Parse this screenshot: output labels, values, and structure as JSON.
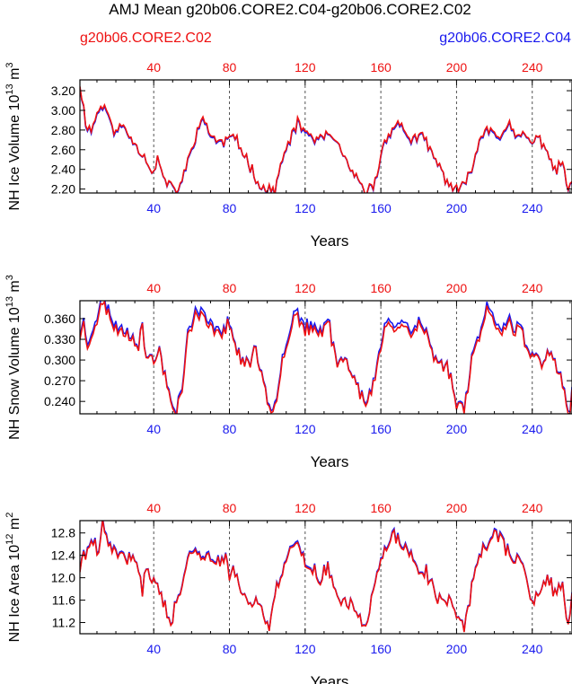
{
  "title": "AMJ Mean g20b06.CORE2.C04-g20b06.CORE2.C02",
  "legend": {
    "left_label": "g20b06.CORE2.C02",
    "right_label": "g20b06.CORE2.C04"
  },
  "colors": {
    "run_c02": "#ee1111",
    "run_c04": "#1a1aee",
    "text": "#000000",
    "grid": "#555555"
  },
  "chart_data": [
    {
      "type": "line",
      "id": "ice-volume",
      "ylabel": "NH Ice Volume 10",
      "ylabel_exp": "13",
      "ylabel_unit": "m",
      "ylabel_unit_exp": "3",
      "xlabel": "Years",
      "xlim": [
        1,
        261
      ],
      "ylim": [
        2.16,
        3.31
      ],
      "yticks": [
        "2.20",
        "2.40",
        "2.60",
        "2.80",
        "3.00",
        "3.20"
      ],
      "xticks": [
        "40",
        "80",
        "120",
        "160",
        "200",
        "240"
      ],
      "gridlines_x": [
        40,
        80,
        120,
        160,
        200,
        240
      ],
      "cycle": 52,
      "seed": 11,
      "keypoints": [
        [
          1,
          3.28
        ],
        [
          4,
          2.88
        ],
        [
          7,
          2.8
        ],
        [
          11,
          3.02
        ],
        [
          14,
          3.07
        ],
        [
          16,
          2.92
        ],
        [
          20,
          2.78
        ],
        [
          24,
          2.85
        ],
        [
          28,
          2.72
        ],
        [
          32,
          2.62
        ],
        [
          36,
          2.5
        ],
        [
          40,
          2.36
        ],
        [
          42,
          2.52
        ],
        [
          45,
          2.32
        ],
        [
          49,
          2.22
        ],
        [
          52,
          2.19
        ],
        [
          55,
          2.28
        ],
        [
          58,
          2.48
        ],
        [
          61,
          2.7
        ],
        [
          64,
          2.84
        ],
        [
          67,
          2.9
        ],
        [
          70,
          2.76
        ],
        [
          73,
          2.7
        ],
        [
          76,
          2.66
        ],
        [
          80,
          2.74
        ],
        [
          84,
          2.68
        ],
        [
          88,
          2.55
        ],
        [
          92,
          2.4
        ],
        [
          96,
          2.25
        ],
        [
          100,
          2.18
        ],
        [
          104,
          2.21
        ],
        [
          108,
          2.48
        ],
        [
          112,
          2.72
        ],
        [
          116,
          2.86
        ],
        [
          120,
          2.8
        ],
        [
          124,
          2.72
        ],
        [
          128,
          2.7
        ],
        [
          132,
          2.77
        ],
        [
          136,
          2.66
        ],
        [
          140,
          2.55
        ],
        [
          144,
          2.4
        ],
        [
          148,
          2.26
        ],
        [
          152,
          2.18
        ],
        [
          156,
          2.22
        ],
        [
          160,
          2.54
        ],
        [
          164,
          2.78
        ],
        [
          168,
          2.86
        ],
        [
          172,
          2.82
        ],
        [
          176,
          2.7
        ],
        [
          180,
          2.74
        ],
        [
          184,
          2.68
        ],
        [
          188,
          2.52
        ],
        [
          192,
          2.38
        ],
        [
          196,
          2.26
        ],
        [
          200,
          2.18
        ],
        [
          204,
          2.22
        ],
        [
          208,
          2.44
        ],
        [
          212,
          2.68
        ],
        [
          216,
          2.84
        ],
        [
          220,
          2.8
        ],
        [
          224,
          2.74
        ],
        [
          228,
          2.84
        ],
        [
          232,
          2.72
        ],
        [
          236,
          2.76
        ],
        [
          240,
          2.66
        ],
        [
          244,
          2.72
        ],
        [
          248,
          2.6
        ],
        [
          252,
          2.36
        ],
        [
          256,
          2.5
        ],
        [
          258,
          2.22
        ],
        [
          261,
          2.24
        ]
      ],
      "noise": 0.05,
      "offset_c04": -0.015
    },
    {
      "type": "line",
      "id": "snow-volume",
      "ylabel": "NH Snow Volume 10",
      "ylabel_exp": "13",
      "ylabel_unit": "m",
      "ylabel_unit_exp": "3",
      "xlabel": "Years",
      "xlim": [
        1,
        261
      ],
      "ylim": [
        0.222,
        0.386
      ],
      "yticks": [
        "0.240",
        "0.270",
        "0.300",
        "0.330",
        "0.360"
      ],
      "xticks": [
        "40",
        "80",
        "120",
        "160",
        "200",
        "240"
      ],
      "gridlines_x": [
        40,
        80,
        120,
        160,
        200,
        240
      ],
      "cycle": 52,
      "seed": 23,
      "keypoints": [
        [
          1,
          0.335
        ],
        [
          3,
          0.35
        ],
        [
          5,
          0.318
        ],
        [
          8,
          0.345
        ],
        [
          11,
          0.368
        ],
        [
          14,
          0.382
        ],
        [
          17,
          0.36
        ],
        [
          20,
          0.345
        ],
        [
          24,
          0.34
        ],
        [
          28,
          0.336
        ],
        [
          32,
          0.324
        ],
        [
          34,
          0.348
        ],
        [
          36,
          0.305
        ],
        [
          40,
          0.298
        ],
        [
          43,
          0.312
        ],
        [
          46,
          0.278
        ],
        [
          49,
          0.238
        ],
        [
          52,
          0.226
        ],
        [
          55,
          0.262
        ],
        [
          58,
          0.33
        ],
        [
          62,
          0.366
        ],
        [
          66,
          0.36
        ],
        [
          70,
          0.344
        ],
        [
          74,
          0.346
        ],
        [
          78,
          0.338
        ],
        [
          80,
          0.36
        ],
        [
          82,
          0.33
        ],
        [
          86,
          0.3
        ],
        [
          90,
          0.296
        ],
        [
          94,
          0.31
        ],
        [
          98,
          0.27
        ],
        [
          101,
          0.232
        ],
        [
          104,
          0.236
        ],
        [
          108,
          0.3
        ],
        [
          112,
          0.34
        ],
        [
          115,
          0.372
        ],
        [
          118,
          0.35
        ],
        [
          122,
          0.34
        ],
        [
          126,
          0.338
        ],
        [
          130,
          0.344
        ],
        [
          132,
          0.362
        ],
        [
          136,
          0.3
        ],
        [
          140,
          0.302
        ],
        [
          144,
          0.288
        ],
        [
          148,
          0.262
        ],
        [
          152,
          0.232
        ],
        [
          156,
          0.26
        ],
        [
          160,
          0.318
        ],
        [
          164,
          0.36
        ],
        [
          168,
          0.346
        ],
        [
          172,
          0.352
        ],
        [
          176,
          0.338
        ],
        [
          180,
          0.35
        ],
        [
          184,
          0.34
        ],
        [
          188,
          0.3
        ],
        [
          192,
          0.298
        ],
        [
          196,
          0.284
        ],
        [
          200,
          0.236
        ],
        [
          204,
          0.232
        ],
        [
          208,
          0.3
        ],
        [
          212,
          0.336
        ],
        [
          216,
          0.372
        ],
        [
          220,
          0.354
        ],
        [
          224,
          0.346
        ],
        [
          228,
          0.356
        ],
        [
          230,
          0.336
        ],
        [
          234,
          0.35
        ],
        [
          238,
          0.302
        ],
        [
          242,
          0.3
        ],
        [
          246,
          0.296
        ],
        [
          250,
          0.31
        ],
        [
          254,
          0.288
        ],
        [
          258,
          0.24
        ],
        [
          260,
          0.226
        ],
        [
          261,
          0.258
        ]
      ],
      "noise": 0.009,
      "offset_c04": 0.006
    },
    {
      "type": "line",
      "id": "ice-area",
      "ylabel": "NH Ice Area 10",
      "ylabel_exp": "12",
      "ylabel_unit": "m",
      "ylabel_unit_exp": "2",
      "xlabel": "Years",
      "xlim": [
        1,
        261
      ],
      "ylim": [
        11.0,
        13.02
      ],
      "yticks": [
        "11.2",
        "11.6",
        "12.0",
        "12.4",
        "12.8"
      ],
      "xticks": [
        "40",
        "80",
        "120",
        "160",
        "200",
        "240"
      ],
      "gridlines_x": [
        40,
        80,
        120,
        160,
        200,
        240
      ],
      "cycle": 52,
      "seed": 41,
      "keypoints": [
        [
          1,
          12.1
        ],
        [
          3,
          12.45
        ],
        [
          5,
          12.5
        ],
        [
          8,
          12.6
        ],
        [
          11,
          12.35
        ],
        [
          13,
          12.98
        ],
        [
          16,
          12.6
        ],
        [
          20,
          12.4
        ],
        [
          24,
          12.42
        ],
        [
          28,
          12.3
        ],
        [
          32,
          12.15
        ],
        [
          34,
          11.8
        ],
        [
          36,
          12.1
        ],
        [
          40,
          12.02
        ],
        [
          43,
          11.86
        ],
        [
          46,
          11.48
        ],
        [
          49,
          11.1
        ],
        [
          52,
          11.55
        ],
        [
          56,
          12.1
        ],
        [
          60,
          12.4
        ],
        [
          64,
          12.55
        ],
        [
          67,
          12.3
        ],
        [
          70,
          12.4
        ],
        [
          74,
          12.24
        ],
        [
          78,
          12.35
        ],
        [
          80,
          12.0
        ],
        [
          82,
          12.26
        ],
        [
          86,
          11.78
        ],
        [
          90,
          11.6
        ],
        [
          94,
          11.55
        ],
        [
          98,
          11.4
        ],
        [
          101,
          11.05
        ],
        [
          104,
          11.7
        ],
        [
          108,
          12.2
        ],
        [
          112,
          12.4
        ],
        [
          116,
          12.7
        ],
        [
          120,
          12.25
        ],
        [
          124,
          12.18
        ],
        [
          128,
          11.9
        ],
        [
          132,
          12.2
        ],
        [
          136,
          11.7
        ],
        [
          140,
          11.6
        ],
        [
          144,
          11.55
        ],
        [
          148,
          11.4
        ],
        [
          152,
          11.1
        ],
        [
          156,
          11.7
        ],
        [
          160,
          12.3
        ],
        [
          164,
          12.6
        ],
        [
          168,
          12.75
        ],
        [
          172,
          12.5
        ],
        [
          176,
          12.4
        ],
        [
          180,
          12.2
        ],
        [
          184,
          12.1
        ],
        [
          188,
          11.75
        ],
        [
          192,
          11.55
        ],
        [
          196,
          11.65
        ],
        [
          200,
          11.4
        ],
        [
          204,
          11.1
        ],
        [
          208,
          11.8
        ],
        [
          212,
          12.4
        ],
        [
          216,
          12.6
        ],
        [
          220,
          12.8
        ],
        [
          224,
          12.7
        ],
        [
          228,
          12.4
        ],
        [
          232,
          12.3
        ],
        [
          236,
          12.1
        ],
        [
          240,
          11.5
        ],
        [
          244,
          11.8
        ],
        [
          248,
          12.0
        ],
        [
          252,
          11.65
        ],
        [
          256,
          11.85
        ],
        [
          259,
          11.1
        ],
        [
          261,
          11.75
        ]
      ],
      "noise": 0.12,
      "offset_c04": 0.03
    }
  ]
}
